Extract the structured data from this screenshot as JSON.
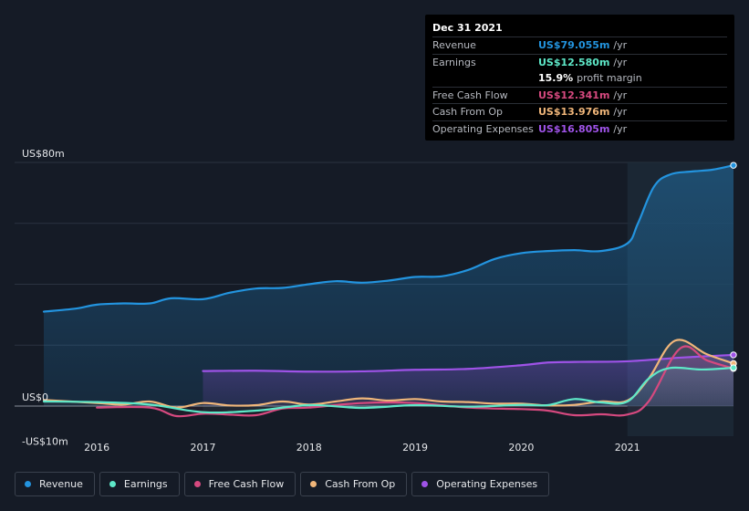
{
  "chart_data": {
    "type": "area",
    "title": "",
    "xlabel": "",
    "ylabel": "",
    "ylim": [
      -10,
      80
    ],
    "y_tick_labels": [
      "US$80m",
      "US$0",
      "-US$10m"
    ],
    "x_tick_labels": [
      "2016",
      "2017",
      "2018",
      "2019",
      "2020",
      "2021"
    ],
    "x_ticks": [
      2016,
      2017,
      2018,
      2019,
      2020,
      2021
    ],
    "x_range": [
      2015.5,
      2022.0
    ],
    "forecast_start": 2021.0,
    "legend_position": "bottom",
    "series": [
      {
        "name": "Revenue",
        "color": "#2394df",
        "area_start": 2015.5,
        "x": [
          2015.5,
          2015.8,
          2016.0,
          2016.25,
          2016.5,
          2016.7,
          2017.0,
          2017.25,
          2017.5,
          2017.75,
          2018.0,
          2018.25,
          2018.5,
          2018.75,
          2019.0,
          2019.25,
          2019.5,
          2019.75,
          2020.0,
          2020.25,
          2020.5,
          2020.75,
          2021.0,
          2021.1,
          2021.25,
          2021.4,
          2021.6,
          2021.8,
          2022.0
        ],
        "values": [
          31,
          32,
          33.3,
          33.7,
          33.7,
          35.4,
          35.1,
          37.2,
          38.6,
          38.8,
          40,
          41,
          40.5,
          41.2,
          42.4,
          42.6,
          44.7,
          48.3,
          50.2,
          50.9,
          51.2,
          50.9,
          53.4,
          60,
          72,
          76,
          77,
          77.6,
          79.055
        ]
      },
      {
        "name": "Earnings",
        "color": "#5ee8c8",
        "area_start": 2017.0,
        "x": [
          2015.5,
          2016.0,
          2016.5,
          2017.0,
          2017.5,
          2018.0,
          2018.5,
          2019.0,
          2019.5,
          2020.0,
          2020.25,
          2020.5,
          2020.75,
          2021.0,
          2021.2,
          2021.4,
          2021.7,
          2022.0
        ],
        "values": [
          1.5,
          1.3,
          0.5,
          -2,
          -1.5,
          0.3,
          -0.6,
          0.3,
          -0.2,
          0.4,
          0.3,
          2.3,
          1.2,
          1.5,
          9,
          12.5,
          12,
          12.58
        ]
      },
      {
        "name": "Free Cash Flow",
        "color": "#d6497f",
        "area_start": 2016.0,
        "x": [
          2016.0,
          2016.5,
          2016.75,
          2017.0,
          2017.25,
          2017.5,
          2017.75,
          2018.0,
          2018.5,
          2019.0,
          2019.5,
          2020.0,
          2020.25,
          2020.5,
          2020.75,
          2021.0,
          2021.2,
          2021.5,
          2021.75,
          2022.0
        ],
        "values": [
          -0.5,
          -0.5,
          -3.3,
          -2.5,
          -2.8,
          -3,
          -0.8,
          -0.5,
          1,
          1,
          -0.5,
          -1,
          -1.5,
          -3,
          -2.7,
          -2.8,
          1.5,
          19,
          15,
          12.341
        ]
      },
      {
        "name": "Cash From Op",
        "color": "#f0b67a",
        "area_start": 2015.5,
        "x": [
          2015.5,
          2016.0,
          2016.25,
          2016.5,
          2016.75,
          2017.0,
          2017.25,
          2017.5,
          2017.75,
          2018.0,
          2018.25,
          2018.5,
          2018.75,
          2019.0,
          2019.25,
          2019.5,
          2019.75,
          2020.0,
          2020.25,
          2020.5,
          2020.75,
          2021.0,
          2021.2,
          2021.45,
          2021.75,
          2022.0
        ],
        "values": [
          2,
          1,
          0.5,
          1.5,
          -0.5,
          1,
          0.2,
          0.3,
          1.5,
          0.5,
          1.5,
          2.5,
          1.8,
          2.3,
          1.5,
          1.3,
          0.8,
          0.8,
          0.2,
          0.4,
          1.5,
          1.8,
          9,
          21.5,
          17,
          13.976
        ]
      },
      {
        "name": "Operating Expenses",
        "color": "#9f53e8",
        "area_start": 2017.0,
        "x": [
          2017.0,
          2017.5,
          2018.0,
          2018.5,
          2019.0,
          2019.5,
          2020.0,
          2020.25,
          2020.5,
          2021.0,
          2021.5,
          2022.0
        ],
        "values": [
          11.5,
          11.6,
          11.3,
          11.4,
          11.9,
          12.2,
          13.4,
          14.3,
          14.5,
          14.7,
          15.9,
          16.805
        ]
      }
    ]
  },
  "tooltip": {
    "date": "Dec 31 2021",
    "rows": [
      {
        "label": "Revenue",
        "value": "US$79.055m",
        "unit": "/yr",
        "color": "#2394df"
      },
      {
        "label": "Earnings",
        "value": "US$12.580m",
        "unit": "/yr",
        "color": "#5ee8c8"
      },
      {
        "label": "",
        "value": "15.9%",
        "unit": "profit margin",
        "color": "#ffffff"
      },
      {
        "label": "Free Cash Flow",
        "value": "US$12.341m",
        "unit": "/yr",
        "color": "#d6497f"
      },
      {
        "label": "Cash From Op",
        "value": "US$13.976m",
        "unit": "/yr",
        "color": "#f0b67a"
      },
      {
        "label": "Operating Expenses",
        "value": "US$16.805m",
        "unit": "/yr",
        "color": "#9f53e8"
      }
    ]
  },
  "legend": [
    {
      "label": "Revenue",
      "color": "#2394df"
    },
    {
      "label": "Earnings",
      "color": "#5ee8c8"
    },
    {
      "label": "Free Cash Flow",
      "color": "#d6497f"
    },
    {
      "label": "Cash From Op",
      "color": "#f0b67a"
    },
    {
      "label": "Operating Expenses",
      "color": "#9f53e8"
    }
  ]
}
